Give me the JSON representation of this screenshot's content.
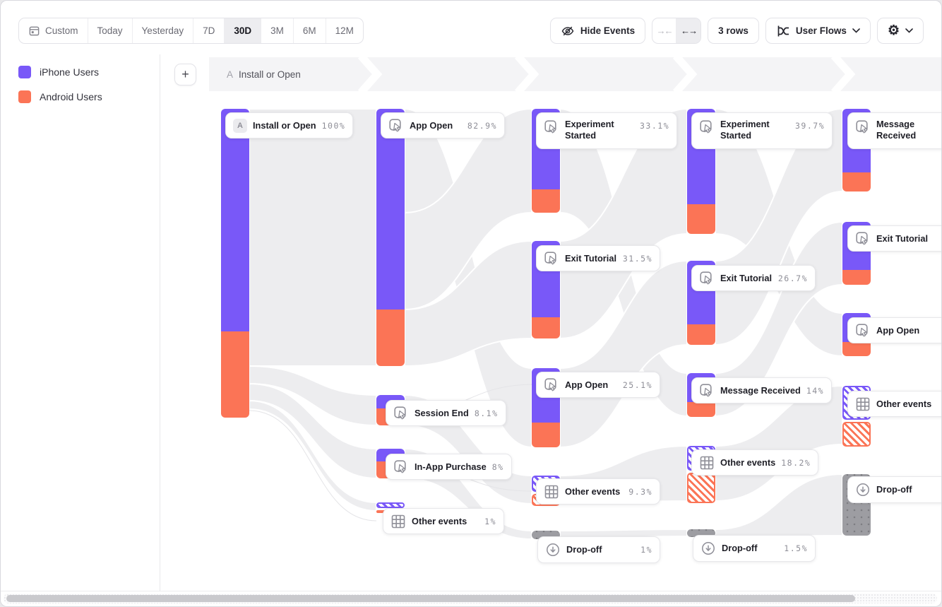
{
  "toolbar": {
    "date_ranges": {
      "items": [
        "Custom",
        "Today",
        "Yesterday",
        "7D",
        "30D",
        "3M",
        "6M",
        "12M"
      ],
      "active": "30D"
    },
    "hide_events_label": "Hide Events",
    "collapse_arrows": "→←",
    "expand_arrows": "←→",
    "rows_label": "3 rows",
    "view_label": "User Flows",
    "add_step_label": "+"
  },
  "legend": {
    "items": [
      {
        "label": "iPhone Users",
        "color": "#7958F8"
      },
      {
        "label": "Android Users",
        "color": "#FB7456"
      }
    ]
  },
  "flow_header": {
    "badge": "A",
    "title": "Install or Open"
  },
  "colors": {
    "iphone": "#7958F8",
    "android": "#FB7456",
    "dropoff": "#9D9DA2",
    "ribbon": "#EDEDEF"
  },
  "chart_data": {
    "type": "sankey",
    "title": "User Flows",
    "series": [
      "iPhone Users",
      "Android Users"
    ],
    "columns": [
      {
        "step": 1,
        "nodes": [
          {
            "label": "Install or Open",
            "value": "100%",
            "kind": "event",
            "badge": "A"
          }
        ]
      },
      {
        "step": 2,
        "nodes": [
          {
            "label": "App Open",
            "value": "82.9%",
            "kind": "event"
          },
          {
            "label": "Session End",
            "value": "8.1%",
            "kind": "event"
          },
          {
            "label": "In-App Purchase",
            "value": "8%",
            "kind": "event"
          },
          {
            "label": "Other events",
            "value": "1%",
            "kind": "other"
          }
        ]
      },
      {
        "step": 3,
        "nodes": [
          {
            "label": "Experiment Started",
            "value": "33.1%",
            "kind": "event"
          },
          {
            "label": "Exit Tutorial",
            "value": "31.5%",
            "kind": "event"
          },
          {
            "label": "App Open",
            "value": "25.1%",
            "kind": "event"
          },
          {
            "label": "Other events",
            "value": "9.3%",
            "kind": "other"
          },
          {
            "label": "Drop-off",
            "value": "1%",
            "kind": "dropoff"
          }
        ]
      },
      {
        "step": 4,
        "nodes": [
          {
            "label": "Experiment Started",
            "value": "39.7%",
            "kind": "event"
          },
          {
            "label": "Exit Tutorial",
            "value": "26.7%",
            "kind": "event"
          },
          {
            "label": "Message Received",
            "value": "14%",
            "kind": "event"
          },
          {
            "label": "Other events",
            "value": "18.2%",
            "kind": "other"
          },
          {
            "label": "Drop-off",
            "value": "1.5%",
            "kind": "dropoff"
          }
        ]
      },
      {
        "step": 5,
        "nodes": [
          {
            "label": "Message Received",
            "value": "",
            "kind": "event"
          },
          {
            "label": "Exit Tutorial",
            "value": "",
            "kind": "event"
          },
          {
            "label": "App Open",
            "value": "",
            "kind": "event"
          },
          {
            "label": "Other events",
            "value": "",
            "kind": "other"
          },
          {
            "label": "Drop-off",
            "value": "",
            "kind": "dropoff"
          }
        ]
      }
    ]
  }
}
